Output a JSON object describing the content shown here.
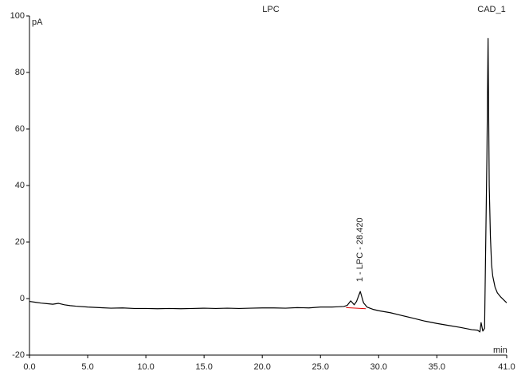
{
  "chart_data": {
    "type": "line",
    "title": "LPC",
    "channel": "CAD_1",
    "xlabel": "min",
    "ylabel": "pA",
    "color": "#000000",
    "x": [
      0,
      0.5,
      1,
      1.5,
      2,
      2.5,
      3,
      3.5,
      4,
      5,
      6,
      7,
      8,
      9,
      10,
      11,
      12,
      13,
      14,
      15,
      16,
      17,
      18,
      19,
      20,
      21,
      22,
      23,
      24,
      25,
      26,
      26.5,
      27,
      27.3,
      27.6,
      27.9,
      28.1,
      28.42,
      28.7,
      29,
      29.5,
      30,
      31,
      32,
      33,
      34,
      35,
      36,
      37,
      38,
      38.5,
      38.7,
      38.8,
      38.95,
      39.1,
      39.3,
      39.4,
      39.5,
      39.6,
      39.7,
      39.8,
      40,
      40.2,
      40.5,
      41
    ],
    "values": [
      -1,
      -1.3,
      -1.6,
      -1.8,
      -2,
      -1.7,
      -2.2,
      -2.5,
      -2.7,
      -3,
      -3.2,
      -3.4,
      -3.3,
      -3.5,
      -3.5,
      -3.6,
      -3.5,
      -3.6,
      -3.5,
      -3.4,
      -3.5,
      -3.4,
      -3.5,
      -3.4,
      -3.3,
      -3.3,
      -3.4,
      -3.2,
      -3.3,
      -3,
      -3,
      -2.9,
      -2.8,
      -2.4,
      -0.8,
      -2.2,
      -1,
      2.5,
      -1.5,
      -3,
      -3.8,
      -4.3,
      -5,
      -6,
      -7,
      -8,
      -8.8,
      -9.5,
      -10.2,
      -11,
      -11.2,
      -11.8,
      -8.5,
      -11.5,
      -10.5,
      50,
      92,
      40,
      22,
      12,
      8,
      4,
      2,
      0.5,
      -1.5
    ],
    "baseline": {
      "x": [
        27.2,
        28.9
      ],
      "values": [
        -3.2,
        -3.6
      ],
      "color": "#e00000"
    },
    "annotations": [
      {
        "text": "1 - LPC - 28.420",
        "x": 28.42
      }
    ],
    "xlim": [
      0,
      41
    ],
    "ylim": [
      -20,
      100
    ],
    "xticks": [
      {
        "value": 0,
        "label": "0.0"
      },
      {
        "value": 5,
        "label": "5.0"
      },
      {
        "value": 10,
        "label": "10.0"
      },
      {
        "value": 15,
        "label": "15.0"
      },
      {
        "value": 20,
        "label": "20.0"
      },
      {
        "value": 25,
        "label": "25.0"
      },
      {
        "value": 30,
        "label": "30.0"
      },
      {
        "value": 35,
        "label": "35.0"
      },
      {
        "value": 41,
        "label": "41.0"
      }
    ],
    "yticks": [
      -20,
      0,
      20,
      40,
      60,
      80,
      100
    ],
    "grid": false
  }
}
